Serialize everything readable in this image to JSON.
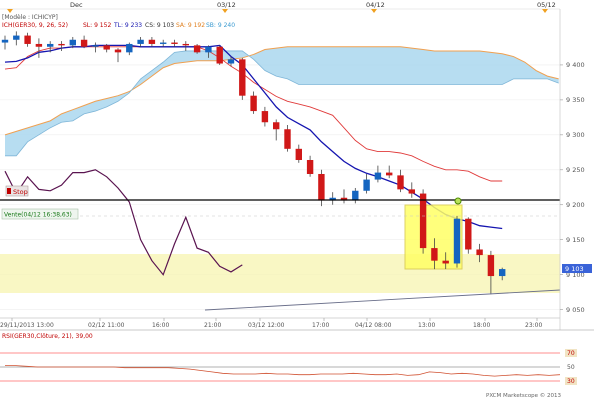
{
  "chart": {
    "header_dates": [
      "Dec",
      "03/12",
      "04/12",
      "05/12"
    ],
    "model_label": "[Modèle : ICHICYP]",
    "indicator_label": "ICH(GER30, 9, 26, 52)",
    "sl": "SL: 9 152",
    "tl": "TL: 9 233",
    "cs": "CS: 9 103",
    "sa": "SA: 9 192",
    "sb": "SB: 9 240",
    "stop_label": "Stop",
    "vente_label": "Vente(04/12 16:38,63)",
    "price_levels": [
      "9 400",
      "9 350",
      "9 300",
      "9 250",
      "9 200",
      "9 150",
      "9 100",
      "9 050"
    ],
    "current_price": "9 103",
    "time_labels": [
      "29/11/2013 13:00",
      "02/12 11:00",
      "16:00",
      "21:00",
      "03/12 12:00",
      "17:00",
      "04/12 08:00",
      "13:00",
      "18:00",
      "23:00"
    ],
    "rsi_label": "RSI(GER30,Clôture, 21), 39,00",
    "rsi_levels": [
      "70",
      "50",
      "30"
    ],
    "copyright": "PXCM Marketscope © 2013"
  },
  "chart_data": {
    "type": "candlestick",
    "instrument": "GER30",
    "y_range": [
      9038,
      9480
    ],
    "candles": [
      {
        "o": 9432,
        "h": 9442,
        "l": 9422,
        "c": 9436
      },
      {
        "o": 9436,
        "h": 9448,
        "l": 9428,
        "c": 9442
      },
      {
        "o": 9442,
        "h": 9446,
        "l": 9426,
        "c": 9430
      },
      {
        "o": 9430,
        "h": 9438,
        "l": 9410,
        "c": 9426
      },
      {
        "o": 9426,
        "h": 9434,
        "l": 9418,
        "c": 9430
      },
      {
        "o": 9430,
        "h": 9434,
        "l": 9420,
        "c": 9428
      },
      {
        "o": 9428,
        "h": 9440,
        "l": 9424,
        "c": 9436
      },
      {
        "o": 9436,
        "h": 9442,
        "l": 9424,
        "c": 9426
      },
      {
        "o": 9426,
        "h": 9432,
        "l": 9418,
        "c": 9428
      },
      {
        "o": 9428,
        "h": 9430,
        "l": 9418,
        "c": 9422
      },
      {
        "o": 9422,
        "h": 9424,
        "l": 9404,
        "c": 9418
      },
      {
        "o": 9418,
        "h": 9432,
        "l": 9414,
        "c": 9430
      },
      {
        "o": 9430,
        "h": 9440,
        "l": 9426,
        "c": 9436
      },
      {
        "o": 9436,
        "h": 9440,
        "l": 9426,
        "c": 9430
      },
      {
        "o": 9430,
        "h": 9436,
        "l": 9426,
        "c": 9432
      },
      {
        "o": 9432,
        "h": 9436,
        "l": 9426,
        "c": 9430
      },
      {
        "o": 9430,
        "h": 9434,
        "l": 9420,
        "c": 9428
      },
      {
        "o": 9428,
        "h": 9430,
        "l": 9416,
        "c": 9418
      },
      {
        "o": 9418,
        "h": 9428,
        "l": 9410,
        "c": 9426
      },
      {
        "o": 9426,
        "h": 9428,
        "l": 9400,
        "c": 9402
      },
      {
        "o": 9402,
        "h": 9412,
        "l": 9398,
        "c": 9408
      },
      {
        "o": 9408,
        "h": 9410,
        "l": 9350,
        "c": 9356
      },
      {
        "o": 9356,
        "h": 9362,
        "l": 9330,
        "c": 9334
      },
      {
        "o": 9334,
        "h": 9340,
        "l": 9312,
        "c": 9318
      },
      {
        "o": 9318,
        "h": 9322,
        "l": 9292,
        "c": 9308
      },
      {
        "o": 9308,
        "h": 9314,
        "l": 9276,
        "c": 9280
      },
      {
        "o": 9280,
        "h": 9286,
        "l": 9260,
        "c": 9264
      },
      {
        "o": 9264,
        "h": 9270,
        "l": 9240,
        "c": 9244
      },
      {
        "o": 9244,
        "h": 9250,
        "l": 9198,
        "c": 9206
      },
      {
        "o": 9206,
        "h": 9218,
        "l": 9200,
        "c": 9210
      },
      {
        "o": 9210,
        "h": 9222,
        "l": 9202,
        "c": 9206
      },
      {
        "o": 9206,
        "h": 9224,
        "l": 9202,
        "c": 9220
      },
      {
        "o": 9220,
        "h": 9244,
        "l": 9216,
        "c": 9236
      },
      {
        "o": 9236,
        "h": 9256,
        "l": 9232,
        "c": 9246
      },
      {
        "o": 9246,
        "h": 9256,
        "l": 9238,
        "c": 9242
      },
      {
        "o": 9242,
        "h": 9250,
        "l": 9218,
        "c": 9222
      },
      {
        "o": 9222,
        "h": 9232,
        "l": 9210,
        "c": 9216
      },
      {
        "o": 9216,
        "h": 9222,
        "l": 9130,
        "c": 9138
      },
      {
        "o": 9138,
        "h": 9152,
        "l": 9108,
        "c": 9120
      },
      {
        "o": 9120,
        "h": 9132,
        "l": 9108,
        "c": 9116
      },
      {
        "o": 9116,
        "h": 9184,
        "l": 9110,
        "c": 9180
      },
      {
        "o": 9180,
        "h": 9182,
        "l": 9130,
        "c": 9136
      },
      {
        "o": 9136,
        "h": 9144,
        "l": 9118,
        "c": 9128
      },
      {
        "o": 9128,
        "h": 9134,
        "l": 9072,
        "c": 9098
      },
      {
        "o": 9098,
        "h": 9110,
        "l": 9092,
        "c": 9108
      }
    ],
    "tenkan": [
      9394,
      9396,
      9412,
      9420,
      9424,
      9424,
      9426,
      9426,
      9426,
      9426,
      9426,
      9426,
      9426,
      9426,
      9426,
      9426,
      9426,
      9426,
      9420,
      9410,
      9398,
      9388,
      9375,
      9365,
      9355,
      9348,
      9344,
      9340,
      9334,
      9328,
      9310,
      9292,
      9280,
      9276,
      9276,
      9274,
      9270,
      9262,
      9255,
      9250,
      9250,
      9248,
      9240,
      9234,
      9234
    ],
    "kijun": [
      9404,
      9405,
      9410,
      9418,
      9420,
      9424,
      9426,
      9426,
      9428,
      9428,
      9428,
      9428,
      9426,
      9426,
      9426,
      9426,
      9426,
      9426,
      9426,
      9428,
      9412,
      9400,
      9380,
      9360,
      9340,
      9325,
      9316,
      9307,
      9290,
      9276,
      9262,
      9252,
      9245,
      9240,
      9234,
      9228,
      9218,
      9208,
      9196,
      9186,
      9180,
      9176,
      9170,
      9168,
      9166
    ],
    "senkou_a": [
      9300,
      9305,
      9310,
      9315,
      9320,
      9330,
      9336,
      9342,
      9348,
      9352,
      9356,
      9362,
      9372,
      9384,
      9396,
      9402,
      9404,
      9406,
      9406,
      9406,
      9408,
      9410,
      9415,
      9422,
      9424,
      9426,
      9426,
      9426,
      9426,
      9426,
      9426,
      9426,
      9426,
      9426,
      9426,
      9426,
      9424,
      9422,
      9420,
      9420,
      9420,
      9420,
      9420,
      9418,
      9416,
      9412,
      9404,
      9392,
      9384,
      9380
    ],
    "senkou_b": [
      9270,
      9270,
      9290,
      9300,
      9310,
      9318,
      9320,
      9330,
      9334,
      9340,
      9348,
      9360,
      9380,
      9392,
      9404,
      9418,
      9420,
      9420,
      9420,
      9420,
      9420,
      9420,
      9408,
      9392,
      9384,
      9380,
      9372,
      9372,
      9372,
      9372,
      9372,
      9372,
      9372,
      9372,
      9372,
      9372,
      9372,
      9372,
      9372,
      9372,
      9372,
      9372,
      9372,
      9372,
      9372,
      9380,
      9380,
      9380,
      9380,
      9374
    ],
    "chikou": [
      9248,
      9216,
      9240,
      9222,
      9220,
      9228,
      9246,
      9246,
      9250,
      9240,
      9224,
      9204,
      9150,
      9120,
      9100,
      9144,
      9182,
      9138,
      9132,
      9112,
      9104,
      9114
    ],
    "rsi": [
      52,
      52,
      51,
      50,
      50,
      50,
      50,
      50,
      50,
      50,
      50,
      49,
      49,
      49,
      49,
      49,
      48,
      47,
      45,
      43,
      41,
      40,
      40,
      40,
      41,
      40,
      40,
      39,
      39,
      40,
      40,
      40,
      41,
      40,
      39,
      39,
      40,
      38,
      39,
      43,
      42,
      40,
      41,
      40,
      38,
      37,
      38,
      39,
      38,
      39,
      38,
      39
    ],
    "stop_level": 9198,
    "entry_level": 9173,
    "current_price": 9103
  }
}
